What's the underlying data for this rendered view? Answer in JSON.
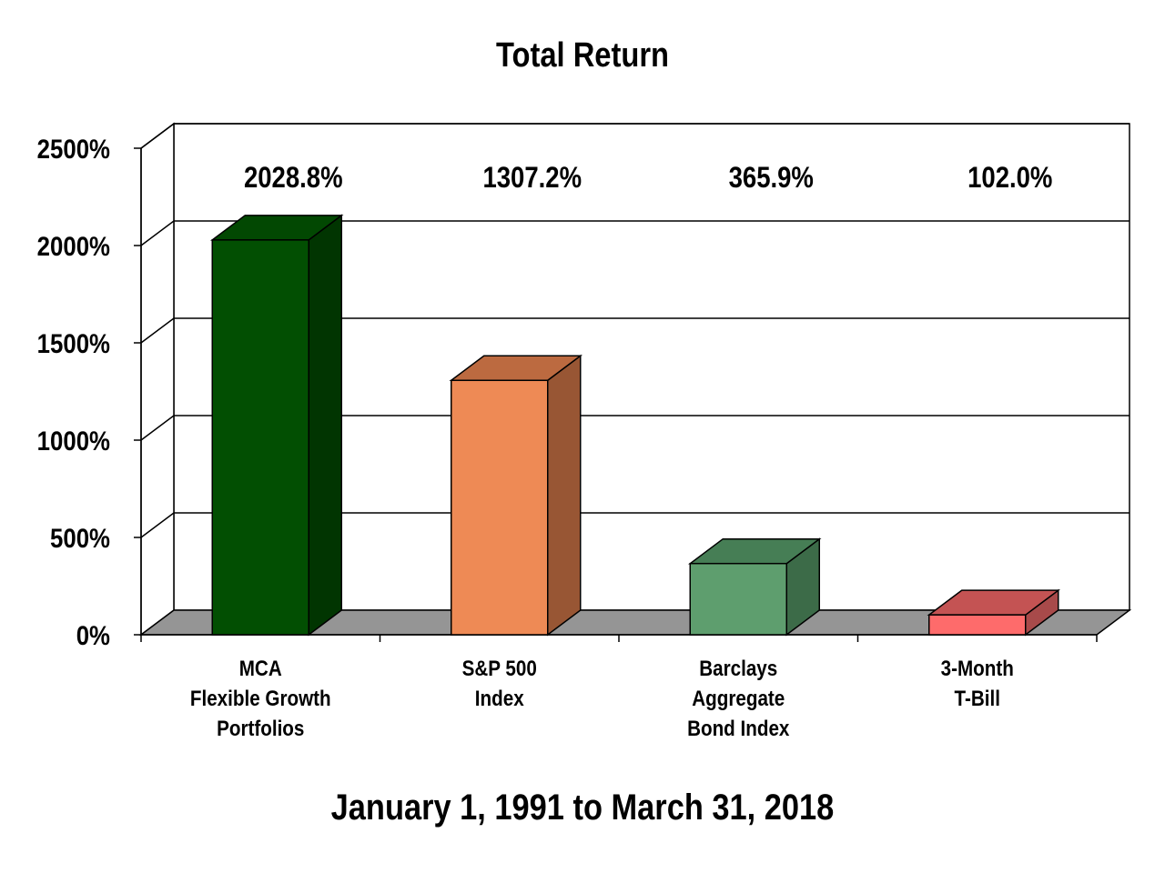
{
  "chart_data": {
    "type": "bar",
    "title": "Total Return",
    "subtitle": "January 1, 1991 to March 31, 2018",
    "categories": [
      [
        "MCA",
        "Flexible Growth",
        "Portfolios"
      ],
      [
        "S&P 500",
        "Index"
      ],
      [
        "Barclays",
        "Aggregate",
        "Bond Index"
      ],
      [
        "3-Month",
        "T-Bill"
      ]
    ],
    "values": [
      2028.8,
      1307.2,
      365.9,
      102.0
    ],
    "data_labels": [
      "2028.8%",
      "1307.2%",
      "365.9%",
      "102.0%"
    ],
    "colors": {
      "bars": [
        {
          "front": "#024f02",
          "side": "#013501",
          "top": "#024802"
        },
        {
          "front": "#ee8a55",
          "side": "#985634",
          "top": "#bc6a40"
        },
        {
          "front": "#5e9e6e",
          "side": "#3c6b48",
          "top": "#467e55"
        },
        {
          "front": "#fe6b6b",
          "side": "#a84a4a",
          "top": "#c45353"
        }
      ],
      "floor": "#959595",
      "gridline": "#000000"
    },
    "ylim": [
      0,
      2500
    ],
    "yticks": [
      0,
      500,
      1000,
      1500,
      2000,
      2500
    ],
    "ytick_labels": [
      "0%",
      "500%",
      "1000%",
      "1500%",
      "2000%",
      "2500%"
    ],
    "grid": true,
    "legend": "none",
    "style": "3d"
  }
}
